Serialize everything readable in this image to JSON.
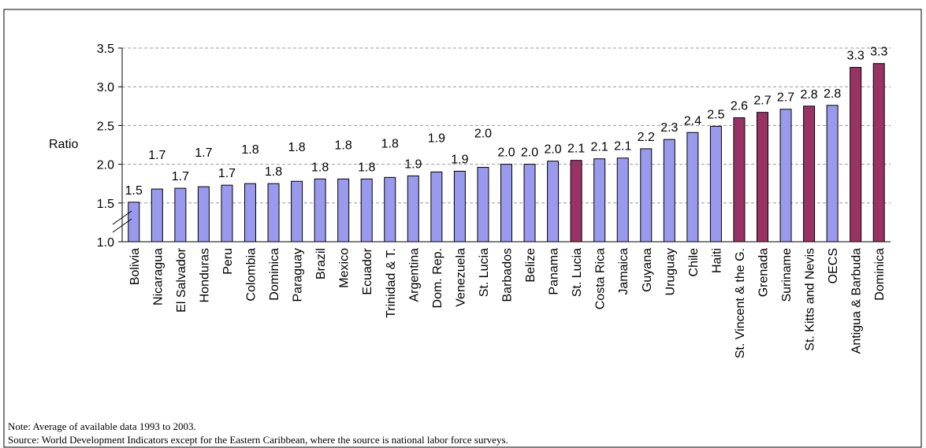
{
  "chart_data": {
    "type": "bar",
    "y_label": "Ratio",
    "categories": [
      "Bolivia",
      "Nicaragua",
      "El Salvador",
      "Honduras",
      "Peru",
      "Colombia",
      "Dominica",
      "Paraguay",
      "Brazil",
      "Mexico",
      "Ecuador",
      "Trinidad & T.",
      "Argentina",
      "Dom. Rep.",
      "Venezuela",
      "St. Lucia",
      "Barbados",
      "Belize",
      "Panama",
      "St. Lucia",
      "Costa Rica",
      "Jamaica",
      "Guyana",
      "Uruguay",
      "Chile",
      "Haiti",
      "St. Vincent & the G.",
      "Grenada",
      "Suriname",
      "St. Kitts and Nevis",
      "OECS",
      "Antigua & Barbuda",
      "Dominica"
    ],
    "values": [
      1.51,
      1.68,
      1.69,
      1.71,
      1.73,
      1.75,
      1.75,
      1.78,
      1.81,
      1.81,
      1.81,
      1.83,
      1.85,
      1.9,
      1.91,
      1.96,
      2.0,
      2.0,
      2.04,
      2.05,
      2.07,
      2.08,
      2.2,
      2.32,
      2.41,
      2.49,
      2.6,
      2.67,
      2.71,
      2.75,
      2.76,
      3.25,
      3.3
    ],
    "value_labels": [
      "1.5",
      "1.7",
      "1.7",
      "1.7",
      "1.7",
      "1.8",
      "1.8",
      "1.8",
      "1.8",
      "1.8",
      "1.8",
      "1.8",
      "1.9",
      "1.9",
      "1.9",
      "2.0",
      "2.0",
      "2.0",
      "2.0",
      "2.1",
      "2.1",
      "2.1",
      "2.2",
      "2.3",
      "2.4",
      "2.5",
      "2.6",
      "2.7",
      "2.7",
      "2.8",
      "2.8",
      "3.3",
      "3.3"
    ],
    "colors": [
      "#9999ee",
      "#9999ee",
      "#9999ee",
      "#9999ee",
      "#9999ee",
      "#9999ee",
      "#9999ee",
      "#9999ee",
      "#9999ee",
      "#9999ee",
      "#9999ee",
      "#9999ee",
      "#9999ee",
      "#9999ee",
      "#9999ee",
      "#9999ee",
      "#9999ee",
      "#9999ee",
      "#9999ee",
      "#993366",
      "#9999ee",
      "#9999ee",
      "#9999ee",
      "#9999ee",
      "#9999ee",
      "#9999ee",
      "#993366",
      "#993366",
      "#9999ee",
      "#993366",
      "#9999ee",
      "#993366",
      "#993366"
    ],
    "ylim": [
      1.0,
      3.5
    ],
    "yticks": [
      {
        "value": 1.0,
        "label": "1.0"
      },
      1.5,
      {
        "value": 2.0,
        "label": "2.0"
      },
      2.5,
      {
        "value": 3.0,
        "label": "3.0"
      },
      3.5
    ],
    "grid": true,
    "notes": [
      "Note: Average of available data 1993 to 2003.",
      "Source: World Development Indicators except for the Eastern Caribbean, where the source is national labor force surveys."
    ]
  }
}
